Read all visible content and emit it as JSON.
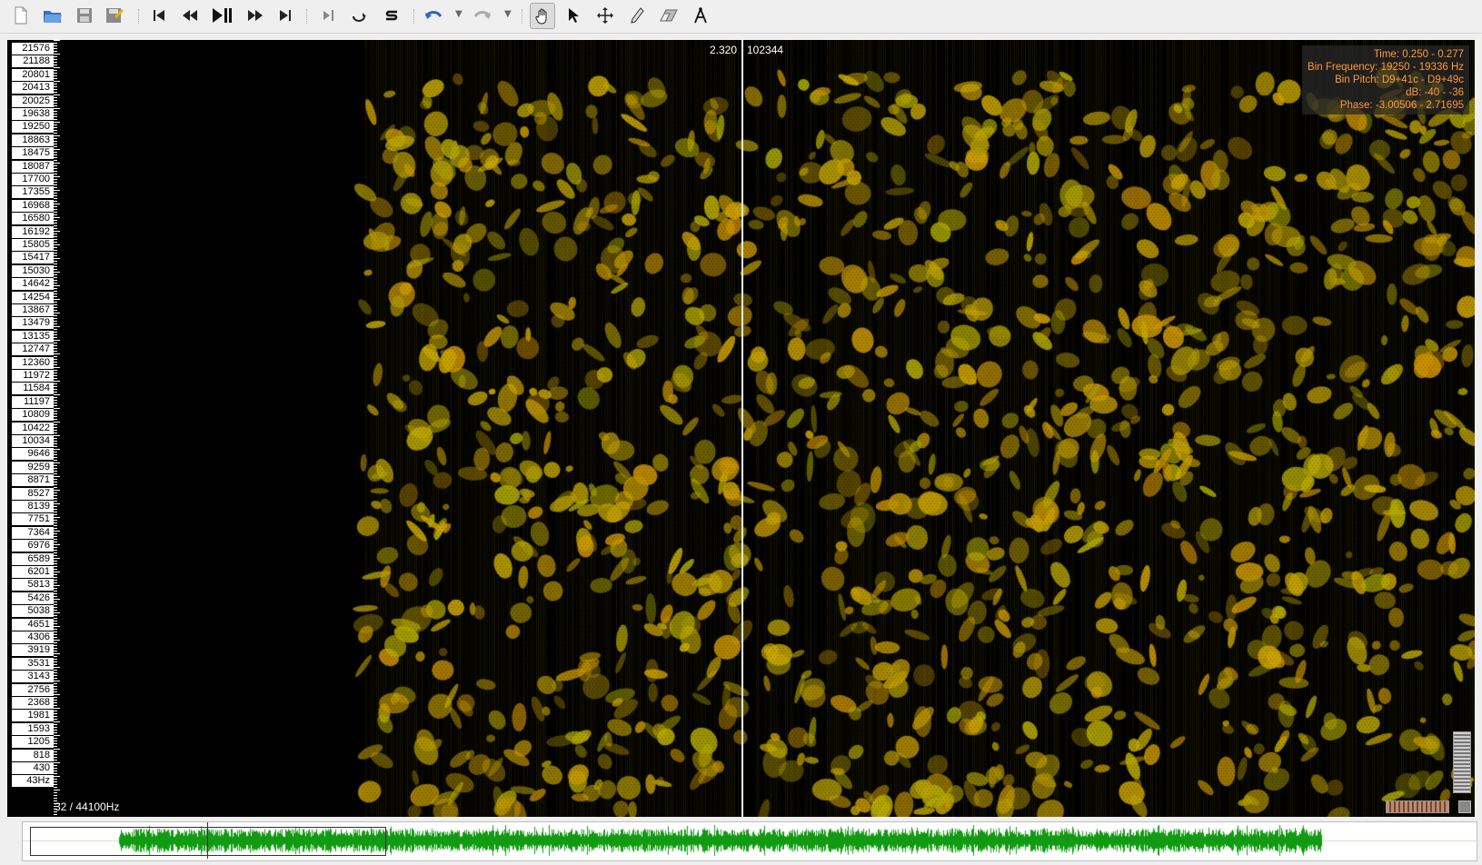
{
  "toolbar": {
    "buttons": [
      {
        "name": "new-file-icon"
      },
      {
        "name": "open-folder-icon"
      },
      {
        "name": "save-icon"
      },
      {
        "name": "save-session-icon"
      },
      {
        "name": "rewind-to-start-icon"
      },
      {
        "name": "rewind-icon"
      },
      {
        "name": "play-pause-icon"
      },
      {
        "name": "fast-forward-icon"
      },
      {
        "name": "forward-to-end-icon"
      },
      {
        "name": "play-selection-icon"
      },
      {
        "name": "loop-icon"
      },
      {
        "name": "solo-icon"
      },
      {
        "name": "undo-icon"
      },
      {
        "name": "redo-icon"
      },
      {
        "name": "navigate-hand-icon"
      },
      {
        "name": "select-arrow-icon"
      },
      {
        "name": "move-cross-icon"
      },
      {
        "name": "draw-pencil-icon"
      },
      {
        "name": "erase-icon"
      },
      {
        "name": "measure-compass-icon"
      }
    ],
    "active_tool": "navigate-hand-icon"
  },
  "ruler": {
    "labels": [
      "21576",
      "21188",
      "20801",
      "20413",
      "20025",
      "19638",
      "19250",
      "18863",
      "18475",
      "18087",
      "17700",
      "17355",
      "16968",
      "16580",
      "16192",
      "15805",
      "15417",
      "15030",
      "14642",
      "14254",
      "13867",
      "13479",
      "13135",
      "12747",
      "12360",
      "11972",
      "11584",
      "11197",
      "10809",
      "10422",
      "10034",
      "9646",
      "9259",
      "8871",
      "8527",
      "8139",
      "7751",
      "7364",
      "6976",
      "6589",
      "6201",
      "5813",
      "5426",
      "5038",
      "4651",
      "4306",
      "3919",
      "3531",
      "3143",
      "2756",
      "2368",
      "1981",
      "1593",
      "1205",
      "818",
      "430",
      "43Hz"
    ]
  },
  "cursor": {
    "time": "2.320",
    "frame": "102344"
  },
  "info": {
    "time": "Time: 0.250 - 0.277",
    "bin_frequency": "Bin Frequency: 19250 - 19336 Hz",
    "bin_pitch": "Bin Pitch: D9+41c - D9+49c",
    "db": "dB: -40 - -36",
    "phase": "Phase: -3.00506 - 2.71695"
  },
  "sample_rate": "32 / 44100Hz",
  "colors": {
    "spectrogram": "#c8b400",
    "background": "#000000",
    "waveform": "#129b12",
    "info_text": "#ff9a3a"
  }
}
